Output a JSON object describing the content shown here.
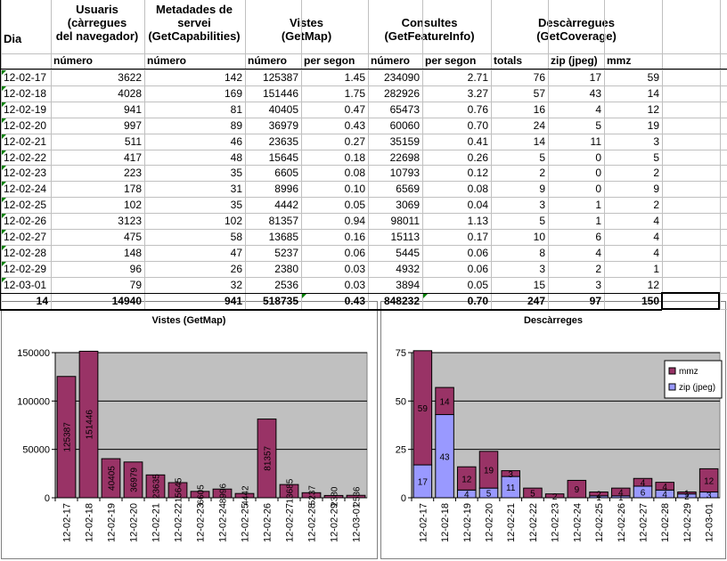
{
  "headers": {
    "dia": "Dia",
    "usuaris": [
      "Usuaris",
      "(càrregues",
      "del navegador)"
    ],
    "metadades": [
      "Metadades de",
      "servei",
      "(GetCapabilities)"
    ],
    "vistes": [
      "Vistes",
      "(GetMap)"
    ],
    "consultes": [
      "Consultes",
      "(GetFeatureInfo)"
    ],
    "descarregues": [
      "Descàrregues",
      "(GetCoverage)"
    ]
  },
  "subheaders": {
    "usuaris_num": "número",
    "metadades_num": "número",
    "vistes_num": "número",
    "vistes_rate": "per segon",
    "consultes_num": "número",
    "consultes_rate": "per segon",
    "totals": "totals",
    "zip": "zip (jpeg)",
    "mmz": "mmz"
  },
  "rows": [
    [
      "12-02-17",
      "3622",
      "142",
      "125387",
      "1.45",
      "234090",
      "2.71",
      "76",
      "17",
      "59"
    ],
    [
      "12-02-18",
      "4028",
      "169",
      "151446",
      "1.75",
      "282926",
      "3.27",
      "57",
      "43",
      "14"
    ],
    [
      "12-02-19",
      "941",
      "81",
      "40405",
      "0.47",
      "65473",
      "0.76",
      "16",
      "4",
      "12"
    ],
    [
      "12-02-20",
      "997",
      "89",
      "36979",
      "0.43",
      "60060",
      "0.70",
      "24",
      "5",
      "19"
    ],
    [
      "12-02-21",
      "511",
      "46",
      "23635",
      "0.27",
      "35159",
      "0.41",
      "14",
      "11",
      "3"
    ],
    [
      "12-02-22",
      "417",
      "48",
      "15645",
      "0.18",
      "22698",
      "0.26",
      "5",
      "0",
      "5"
    ],
    [
      "12-02-23",
      "223",
      "35",
      "6605",
      "0.08",
      "10793",
      "0.12",
      "2",
      "0",
      "2"
    ],
    [
      "12-02-24",
      "178",
      "31",
      "8996",
      "0.10",
      "6569",
      "0.08",
      "9",
      "0",
      "9"
    ],
    [
      "12-02-25",
      "102",
      "35",
      "4442",
      "0.05",
      "3069",
      "0.04",
      "3",
      "1",
      "2"
    ],
    [
      "12-02-26",
      "3123",
      "102",
      "81357",
      "0.94",
      "98011",
      "1.13",
      "5",
      "1",
      "4"
    ],
    [
      "12-02-27",
      "475",
      "58",
      "13685",
      "0.16",
      "15113",
      "0.17",
      "10",
      "6",
      "4"
    ],
    [
      "12-02-28",
      "148",
      "47",
      "5237",
      "0.06",
      "5445",
      "0.06",
      "8",
      "4",
      "4"
    ],
    [
      "12-02-29",
      "96",
      "26",
      "2380",
      "0.03",
      "4932",
      "0.06",
      "3",
      "2",
      "1"
    ],
    [
      "12-03-01",
      "79",
      "32",
      "2536",
      "0.03",
      "3894",
      "0.05",
      "15",
      "3",
      "12"
    ]
  ],
  "totals": [
    "14",
    "14940",
    "941",
    "518735",
    "0.43",
    "848232",
    "0.70",
    "247",
    "97",
    "150"
  ],
  "colors": {
    "mmz": "#993366",
    "zip": "#9999ff",
    "plot_bg": "#c0c0c0",
    "bar": "#993366"
  },
  "chart_data": [
    {
      "type": "bar",
      "title": "Vistes (GetMap)",
      "categories": [
        "12-02-17",
        "12-02-18",
        "12-02-19",
        "12-02-20",
        "12-02-21",
        "12-02-22",
        "12-02-23",
        "12-02-24",
        "12-02-25",
        "12-02-26",
        "12-02-27",
        "12-02-28",
        "12-02-29",
        "12-03-01"
      ],
      "values": [
        125387,
        151446,
        40405,
        36979,
        23635,
        15645,
        6605,
        8996,
        4442,
        81357,
        13685,
        5237,
        2380,
        2536
      ],
      "yticks": [
        "0",
        "50000",
        "100000",
        "150000"
      ],
      "ylim": [
        0,
        150000
      ],
      "grid": true
    },
    {
      "type": "bar",
      "stacked": true,
      "title": "Descàrreges",
      "categories": [
        "12-02-17",
        "12-02-18",
        "12-02-19",
        "12-02-20",
        "12-02-21",
        "12-02-22",
        "12-02-23",
        "12-02-24",
        "12-02-25",
        "12-02-26",
        "12-02-27",
        "12-02-28",
        "12-02-29",
        "12-03-01"
      ],
      "series": [
        {
          "name": "zip (jpeg)",
          "values": [
            17,
            43,
            4,
            5,
            11,
            0,
            0,
            0,
            1,
            1,
            6,
            4,
            2,
            3
          ]
        },
        {
          "name": "mmz",
          "values": [
            59,
            14,
            12,
            19,
            3,
            5,
            2,
            9,
            2,
            4,
            4,
            4,
            1,
            12
          ]
        }
      ],
      "yticks": [
        "0",
        "25",
        "50",
        "75"
      ],
      "ylim": [
        0,
        75
      ],
      "legend": "right",
      "grid": true
    }
  ]
}
